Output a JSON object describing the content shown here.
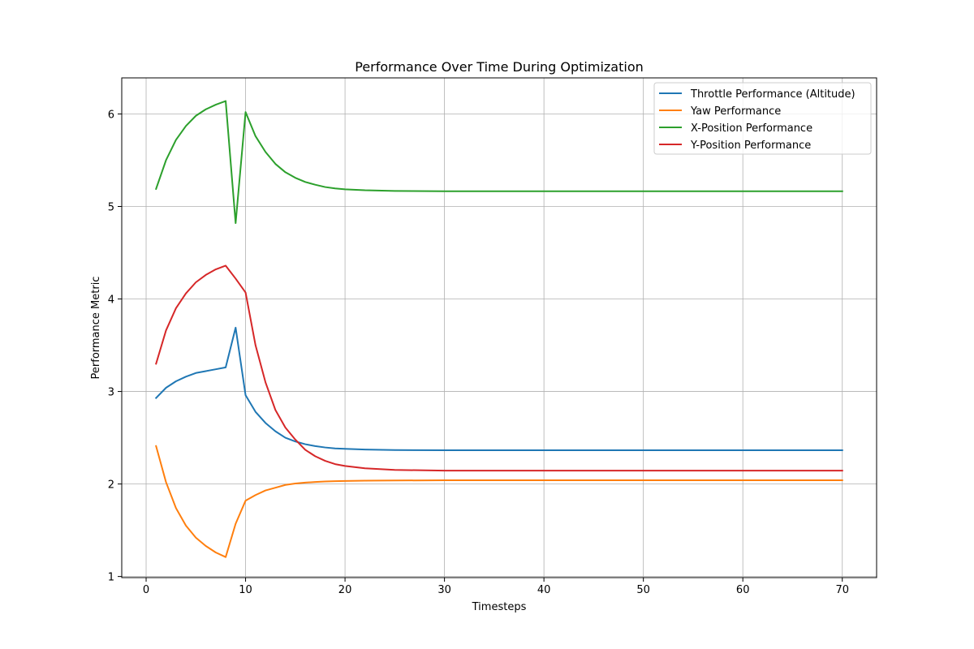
{
  "chart_data": {
    "type": "line",
    "title": "Performance Over Time During Optimization",
    "xlabel": "Timesteps",
    "ylabel": "Performance Metric",
    "xlim": [
      -2.45,
      73.45
    ],
    "ylim": [
      0.988,
      6.39
    ],
    "xticks": [
      0,
      10,
      20,
      30,
      40,
      50,
      60,
      70
    ],
    "yticks": [
      1,
      2,
      3,
      4,
      5,
      6
    ],
    "grid": true,
    "legend_position": "upper right",
    "series": [
      {
        "name": "Throttle Performance (Altitude)",
        "color": "#1f77b4",
        "x": [
          1,
          2,
          3,
          4,
          5,
          6,
          7,
          8,
          9,
          10,
          11,
          12,
          13,
          14,
          15,
          16,
          17,
          18,
          19,
          20,
          22,
          25,
          30,
          40,
          50,
          60,
          70
        ],
        "values": [
          2.93,
          3.04,
          3.11,
          3.16,
          3.2,
          3.22,
          3.24,
          3.26,
          3.69,
          2.96,
          2.78,
          2.66,
          2.57,
          2.5,
          2.46,
          2.43,
          2.41,
          2.395,
          2.385,
          2.38,
          2.372,
          2.367,
          2.365,
          2.365,
          2.365,
          2.365,
          2.365
        ]
      },
      {
        "name": "Yaw Performance",
        "color": "#ff7f0e",
        "x": [
          1,
          2,
          3,
          4,
          5,
          6,
          7,
          8,
          9,
          10,
          11,
          12,
          13,
          14,
          15,
          16,
          17,
          18,
          19,
          20,
          22,
          25,
          30,
          40,
          50,
          60,
          70
        ],
        "values": [
          2.41,
          2.02,
          1.74,
          1.55,
          1.42,
          1.33,
          1.26,
          1.21,
          1.57,
          1.82,
          1.88,
          1.93,
          1.96,
          1.99,
          2.005,
          2.015,
          2.022,
          2.027,
          2.03,
          2.033,
          2.036,
          2.038,
          2.04,
          2.04,
          2.04,
          2.04,
          2.04
        ]
      },
      {
        "name": "X-Position Performance",
        "color": "#2ca02c",
        "x": [
          1,
          2,
          3,
          4,
          5,
          6,
          7,
          8,
          9,
          10,
          11,
          12,
          13,
          14,
          15,
          16,
          17,
          18,
          19,
          20,
          22,
          25,
          30,
          40,
          50,
          60,
          70
        ],
        "values": [
          5.19,
          5.5,
          5.72,
          5.87,
          5.98,
          6.05,
          6.1,
          6.14,
          4.82,
          6.02,
          5.76,
          5.59,
          5.46,
          5.37,
          5.31,
          5.265,
          5.235,
          5.21,
          5.195,
          5.185,
          5.175,
          5.168,
          5.165,
          5.165,
          5.165,
          5.165,
          5.165
        ]
      },
      {
        "name": "Y-Position Performance",
        "color": "#d62728",
        "x": [
          1,
          2,
          3,
          4,
          5,
          6,
          7,
          8,
          9,
          10,
          11,
          12,
          13,
          14,
          15,
          16,
          17,
          18,
          19,
          20,
          22,
          25,
          30,
          40,
          50,
          60,
          70
        ],
        "values": [
          3.3,
          3.66,
          3.9,
          4.06,
          4.18,
          4.26,
          4.32,
          4.36,
          4.22,
          4.07,
          3.5,
          3.1,
          2.8,
          2.61,
          2.48,
          2.37,
          2.3,
          2.25,
          2.215,
          2.195,
          2.17,
          2.152,
          2.145,
          2.145,
          2.145,
          2.145,
          2.145
        ]
      }
    ]
  }
}
